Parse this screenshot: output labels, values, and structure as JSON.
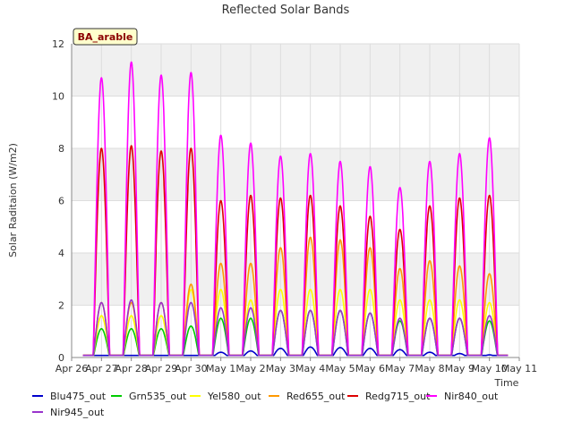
{
  "chart_data": {
    "type": "line",
    "title": "Reflected Solar Bands",
    "xlabel": "Time",
    "ylabel": "Solar Raditaion (W/m2)",
    "site_badge": "BA_arable",
    "ylim": [
      0,
      12
    ],
    "yticks": [
      0,
      2,
      4,
      6,
      8,
      10,
      12
    ],
    "xlim": [
      0,
      15
    ],
    "xticks": [
      {
        "pos": 0,
        "label": "Apr 26"
      },
      {
        "pos": 1,
        "label": "Apr 27"
      },
      {
        "pos": 2,
        "label": "Apr 28"
      },
      {
        "pos": 3,
        "label": "Apr 29"
      },
      {
        "pos": 4,
        "label": "Apr 30"
      },
      {
        "pos": 5,
        "label": "May 1"
      },
      {
        "pos": 6,
        "label": "May 2"
      },
      {
        "pos": 7,
        "label": "May 3"
      },
      {
        "pos": 8,
        "label": "May 4"
      },
      {
        "pos": 9,
        "label": "May 5"
      },
      {
        "pos": 10,
        "label": "May 6"
      },
      {
        "pos": 11,
        "label": "May 7"
      },
      {
        "pos": 12,
        "label": "May 8"
      },
      {
        "pos": 13,
        "label": "May 9"
      },
      {
        "pos": 14,
        "label": "May 10"
      },
      {
        "pos": 15,
        "label": "May 11"
      }
    ],
    "grid": true,
    "legend_position": "bottom",
    "day_noon_x": [
      1,
      2,
      3,
      4,
      5,
      6,
      7,
      8,
      9,
      10,
      11,
      12,
      13,
      14
    ],
    "series": [
      {
        "name": "Blu475_out",
        "color": "#0000cc",
        "daily_peak": [
          0.05,
          0.05,
          0.05,
          0.08,
          0.2,
          0.25,
          0.35,
          0.4,
          0.38,
          0.35,
          0.3,
          0.2,
          0.15,
          0.1
        ]
      },
      {
        "name": "Grn535_out",
        "color": "#00cc00",
        "daily_peak": [
          1.1,
          1.1,
          1.1,
          1.2,
          1.5,
          1.5,
          1.8,
          1.8,
          1.8,
          1.7,
          1.4,
          1.5,
          1.5,
          1.4
        ]
      },
      {
        "name": "Yel580_out",
        "color": "#ffff00",
        "daily_peak": [
          1.6,
          1.6,
          1.6,
          2.6,
          2.6,
          2.2,
          2.6,
          2.6,
          2.6,
          2.6,
          2.2,
          2.2,
          2.2,
          2.1
        ]
      },
      {
        "name": "Red655_out",
        "color": "#ff9900",
        "daily_peak": [
          2.1,
          2.1,
          2.1,
          2.8,
          3.6,
          3.6,
          4.2,
          4.6,
          4.5,
          4.2,
          3.4,
          3.7,
          3.5,
          3.2
        ]
      },
      {
        "name": "Redg715_out",
        "color": "#dd0000",
        "daily_peak": [
          8.0,
          8.1,
          7.9,
          8.0,
          6.0,
          6.2,
          6.1,
          6.2,
          5.8,
          5.4,
          4.9,
          5.8,
          6.1,
          6.2
        ]
      },
      {
        "name": "Nir840_out",
        "color": "#ff00ff",
        "daily_peak": [
          10.7,
          11.3,
          10.8,
          10.9,
          8.5,
          8.2,
          7.7,
          7.8,
          7.5,
          7.3,
          6.5,
          7.5,
          7.8,
          8.4
        ]
      },
      {
        "name": "Nir945_out",
        "color": "#9933cc",
        "daily_peak": [
          2.1,
          2.2,
          2.1,
          2.1,
          1.9,
          1.9,
          1.8,
          1.8,
          1.8,
          1.7,
          1.5,
          1.5,
          1.5,
          1.6
        ]
      }
    ]
  }
}
